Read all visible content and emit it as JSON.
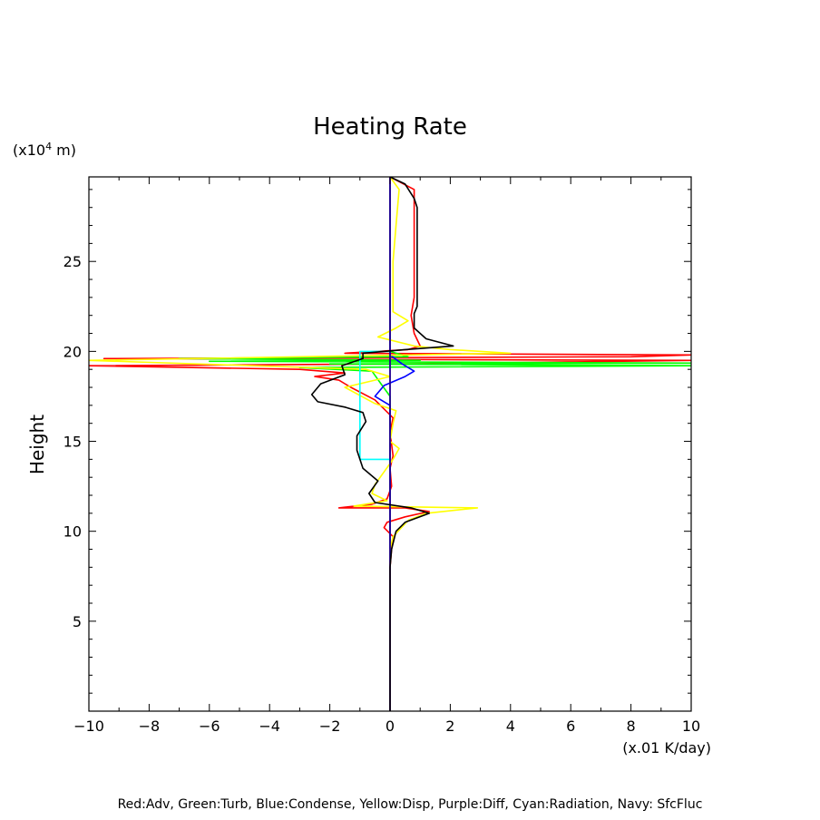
{
  "chart_data": {
    "type": "line",
    "title": "Heating Rate",
    "xlabel": "(x.01 K/day)",
    "ylabel": "Height",
    "y_unit_label": "(x10",
    "y_unit_exp": "4",
    "y_unit_tail": " m)",
    "xlim": [
      -10,
      10
    ],
    "ylim": [
      0,
      29.7
    ],
    "xticks": [
      -10,
      -8,
      -6,
      -4,
      -2,
      0,
      2,
      4,
      6,
      8,
      10
    ],
    "yticks": [
      5,
      10,
      15,
      20,
      25
    ],
    "grid": false,
    "footer": "Red:Adv, Green:Turb, Blue:Condense, Yellow:Disp, Purple:Diff, Cyan:Radiation, Navy: SfcFluc",
    "series": [
      {
        "name": "Adv",
        "color": "#ff0000",
        "points": [
          [
            0,
            0
          ],
          [
            0,
            8
          ],
          [
            0.05,
            9
          ],
          [
            0.1,
            9.7
          ],
          [
            -0.2,
            10.2
          ],
          [
            -0.1,
            10.5
          ],
          [
            0.5,
            10.8
          ],
          [
            1.3,
            11.1
          ],
          [
            0.5,
            11.3
          ],
          [
            -1.7,
            11.3
          ],
          [
            -0.6,
            11.5
          ],
          [
            -0.1,
            11.8
          ],
          [
            0.05,
            12.5
          ],
          [
            0,
            13.5
          ],
          [
            0.1,
            14.2
          ],
          [
            0,
            15.5
          ],
          [
            0.1,
            16.3
          ],
          [
            -0.5,
            17.3
          ],
          [
            -1.3,
            18.0
          ],
          [
            -1.7,
            18.4
          ],
          [
            -2.5,
            18.6
          ],
          [
            -1.5,
            18.8
          ],
          [
            -3.0,
            19.0
          ],
          [
            -10,
            19.2
          ],
          [
            0.5,
            19.3
          ],
          [
            10,
            19.5
          ],
          [
            -9.5,
            19.6
          ],
          [
            8,
            19.7
          ],
          [
            10,
            19.8
          ],
          [
            -1.5,
            19.9
          ],
          [
            0.6,
            20.1
          ],
          [
            1.0,
            20.3
          ],
          [
            0.8,
            21.0
          ],
          [
            0.7,
            22.0
          ],
          [
            0.8,
            23.0
          ],
          [
            0.8,
            25.0
          ],
          [
            0.8,
            27.0
          ],
          [
            0.8,
            29.0
          ],
          [
            0,
            29.7
          ]
        ]
      },
      {
        "name": "Turb",
        "color": "#00ff00",
        "points": [
          [
            0,
            0
          ],
          [
            0,
            3
          ],
          [
            0,
            17
          ],
          [
            0,
            17.5
          ],
          [
            -0.3,
            18.2
          ],
          [
            -0.6,
            18.9
          ],
          [
            -3,
            19.1
          ],
          [
            10,
            19.2
          ],
          [
            -2,
            19.3
          ],
          [
            10,
            19.35
          ],
          [
            -6,
            19.45
          ],
          [
            1,
            19.5
          ],
          [
            -7,
            19.6
          ],
          [
            0.6,
            19.7
          ],
          [
            0,
            20
          ],
          [
            0,
            29.7
          ]
        ]
      },
      {
        "name": "Condense",
        "color": "#0000ff",
        "points": [
          [
            0,
            0
          ],
          [
            0,
            17.0
          ],
          [
            -0.5,
            17.5
          ],
          [
            -0.2,
            18.1
          ],
          [
            0.5,
            18.6
          ],
          [
            0.8,
            18.9
          ],
          [
            0.4,
            19.3
          ],
          [
            0,
            19.8
          ],
          [
            0,
            29.7
          ]
        ]
      },
      {
        "name": "Disp",
        "color": "#ffff00",
        "points": [
          [
            0,
            0
          ],
          [
            0,
            9
          ],
          [
            0.1,
            9.7
          ],
          [
            0.6,
            10.6
          ],
          [
            1.2,
            11.0
          ],
          [
            2.9,
            11.3
          ],
          [
            -1.2,
            11.4
          ],
          [
            -0.1,
            11.7
          ],
          [
            -0.6,
            12.1
          ],
          [
            -0.5,
            12.6
          ],
          [
            -0.2,
            13.3
          ],
          [
            0.1,
            14.0
          ],
          [
            0.3,
            14.6
          ],
          [
            0,
            15.0
          ],
          [
            0.1,
            16.0
          ],
          [
            0.2,
            16.7
          ],
          [
            -0.5,
            17.1
          ],
          [
            -1.5,
            18.0
          ],
          [
            0,
            18.6
          ],
          [
            -0.8,
            19.0
          ],
          [
            -10,
            19.5
          ],
          [
            4.0,
            19.9
          ],
          [
            2,
            20.1
          ],
          [
            0.8,
            20.3
          ],
          [
            -0.4,
            20.8
          ],
          [
            0.2,
            21.3
          ],
          [
            0.6,
            21.7
          ],
          [
            0.1,
            22.2
          ],
          [
            0.1,
            25
          ],
          [
            0.2,
            27
          ],
          [
            0.3,
            29
          ],
          [
            0,
            29.7
          ]
        ]
      },
      {
        "name": "Diff",
        "color": "#ff00ff",
        "points": [
          [
            0,
            0
          ],
          [
            0,
            29.7
          ]
        ]
      },
      {
        "name": "Radiation",
        "color": "#00ffff",
        "points": [
          [
            0,
            14
          ],
          [
            -1.0,
            14
          ],
          [
            -1.0,
            20
          ],
          [
            0,
            20
          ]
        ]
      },
      {
        "name": "SfcFluc",
        "color": "#000080",
        "points": [
          [
            0,
            0
          ],
          [
            0,
            29.7
          ]
        ]
      },
      {
        "name": "",
        "color": "#000000",
        "points": [
          [
            0,
            0
          ],
          [
            0,
            8
          ],
          [
            0.05,
            9
          ],
          [
            0.2,
            10.0
          ],
          [
            0.5,
            10.5
          ],
          [
            1.3,
            11.0
          ],
          [
            0.7,
            11.3
          ],
          [
            -0.5,
            11.6
          ],
          [
            -0.7,
            12.1
          ],
          [
            -0.4,
            12.8
          ],
          [
            -0.9,
            13.5
          ],
          [
            -1.1,
            14.5
          ],
          [
            -1.1,
            15.3
          ],
          [
            -0.8,
            16.1
          ],
          [
            -0.9,
            16.6
          ],
          [
            -1.5,
            16.9
          ],
          [
            -2.4,
            17.2
          ],
          [
            -2.6,
            17.6
          ],
          [
            -2.3,
            18.2
          ],
          [
            -1.5,
            18.7
          ],
          [
            -1.6,
            19.2
          ],
          [
            -0.9,
            19.6
          ],
          [
            -0.9,
            19.9
          ],
          [
            0.5,
            20.1
          ],
          [
            2.1,
            20.3
          ],
          [
            1.2,
            20.7
          ],
          [
            0.8,
            21.3
          ],
          [
            0.8,
            22.1
          ],
          [
            0.9,
            22.5
          ],
          [
            0.9,
            24
          ],
          [
            0.9,
            26
          ],
          [
            0.9,
            28
          ],
          [
            0.8,
            28.5
          ],
          [
            0.5,
            29.3
          ],
          [
            0,
            29.7
          ]
        ]
      }
    ]
  }
}
